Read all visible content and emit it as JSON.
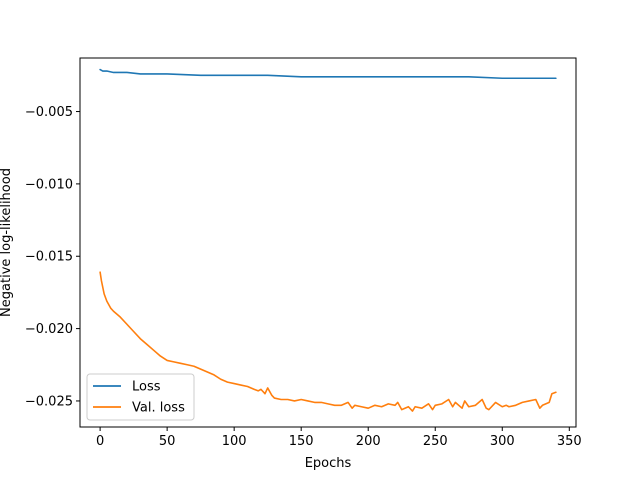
{
  "chart_data": {
    "type": "line",
    "xlabel": "Epochs",
    "ylabel": "Negative log-likelihood",
    "xlim": [
      -15,
      355
    ],
    "ylim": [
      -0.0268,
      -0.0013
    ],
    "x_ticks": [
      0,
      50,
      100,
      150,
      200,
      250,
      300,
      350
    ],
    "x_tick_labels": [
      "0",
      "50",
      "100",
      "150",
      "200",
      "250",
      "300",
      "350"
    ],
    "y_ticks": [
      -0.005,
      -0.01,
      -0.015,
      -0.02,
      -0.025
    ],
    "y_tick_labels": [
      "−0.005",
      "−0.010",
      "−0.015",
      "−0.020",
      "−0.025"
    ],
    "grid": false,
    "legend_position": "lower-left",
    "series": [
      {
        "name": "Loss",
        "color": "#1f77b4",
        "x": [
          0,
          2,
          5,
          10,
          20,
          30,
          50,
          75,
          100,
          125,
          150,
          175,
          200,
          225,
          250,
          275,
          300,
          325,
          340
        ],
        "values": [
          -0.0021,
          -0.0022,
          -0.0022,
          -0.0023,
          -0.0023,
          -0.0024,
          -0.0024,
          -0.0025,
          -0.0025,
          -0.0025,
          -0.0026,
          -0.0026,
          -0.0026,
          -0.0026,
          -0.0026,
          -0.0026,
          -0.0027,
          -0.0027,
          -0.0027
        ]
      },
      {
        "name": "Val. loss",
        "color": "#ff7f0e",
        "x": [
          0,
          1,
          3,
          5,
          8,
          10,
          15,
          20,
          25,
          30,
          35,
          40,
          45,
          50,
          55,
          60,
          65,
          70,
          75,
          80,
          85,
          90,
          95,
          100,
          105,
          110,
          115,
          118,
          120,
          123,
          125,
          128,
          130,
          135,
          140,
          145,
          150,
          155,
          160,
          165,
          170,
          175,
          180,
          185,
          188,
          190,
          195,
          200,
          205,
          210,
          215,
          220,
          222,
          225,
          230,
          233,
          235,
          240,
          245,
          248,
          250,
          255,
          260,
          263,
          265,
          270,
          272,
          275,
          280,
          285,
          288,
          290,
          295,
          300,
          303,
          305,
          310,
          315,
          320,
          325,
          328,
          330,
          335,
          337,
          340
        ],
        "values": [
          -0.0161,
          -0.0167,
          -0.0176,
          -0.0181,
          -0.0186,
          -0.0188,
          -0.0192,
          -0.0197,
          -0.0202,
          -0.0207,
          -0.0211,
          -0.0215,
          -0.0219,
          -0.0222,
          -0.0223,
          -0.0224,
          -0.0225,
          -0.0226,
          -0.0228,
          -0.023,
          -0.0232,
          -0.0235,
          -0.0237,
          -0.0238,
          -0.0239,
          -0.024,
          -0.0242,
          -0.0243,
          -0.0242,
          -0.0245,
          -0.0241,
          -0.0246,
          -0.0248,
          -0.0249,
          -0.0249,
          -0.025,
          -0.0249,
          -0.025,
          -0.0251,
          -0.0251,
          -0.0252,
          -0.0253,
          -0.0253,
          -0.0251,
          -0.0255,
          -0.0253,
          -0.0254,
          -0.0255,
          -0.0253,
          -0.0254,
          -0.0252,
          -0.0253,
          -0.0251,
          -0.0256,
          -0.0254,
          -0.0257,
          -0.0254,
          -0.0255,
          -0.0252,
          -0.0256,
          -0.0253,
          -0.0252,
          -0.0249,
          -0.0254,
          -0.0251,
          -0.0255,
          -0.025,
          -0.0254,
          -0.0253,
          -0.0249,
          -0.0255,
          -0.0256,
          -0.0251,
          -0.0254,
          -0.0253,
          -0.0254,
          -0.0253,
          -0.0251,
          -0.025,
          -0.0249,
          -0.0255,
          -0.0253,
          -0.0251,
          -0.0245,
          -0.0244
        ]
      }
    ]
  }
}
